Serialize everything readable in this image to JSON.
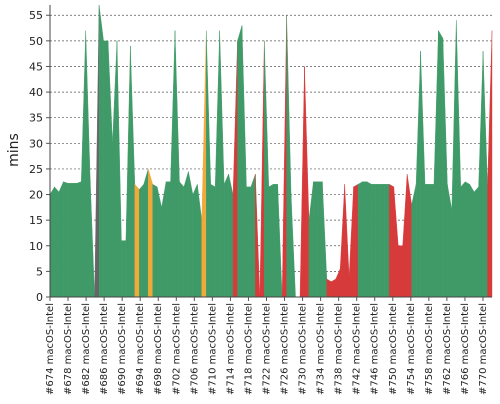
{
  "chart_data": {
    "type": "area",
    "ylabel": "mins",
    "ylim": [
      0,
      57
    ],
    "yticks": [
      0,
      5,
      10,
      15,
      20,
      25,
      30,
      35,
      40,
      45,
      50,
      55
    ],
    "grid": true,
    "x_labels": [
      "#674 macOS-Intel",
      "#678 macOS-Intel",
      "#682 macOS-Intel",
      "#686 macOS-Intel",
      "#690 macOS-Intel",
      "#694 macOS-Intel",
      "#698 macOS-Intel",
      "#702 macOS-Intel",
      "#706 macOS-Intel",
      "#710 macOS-Intel",
      "#714 macOS-Intel",
      "#718 macOS-Intel",
      "#722 macOS-Intel",
      "#726 macOS-Intel",
      "#730 macOS-Intel",
      "#734 macOS-Intel",
      "#738 macOS-Intel",
      "#742 macOS-Intel",
      "#746 macOS-Intel",
      "#750 macOS-Intel",
      "#754 macOS-Intel",
      "#758 macOS-Intel",
      "#762 macOS-Intel",
      "#766 macOS-Intel",
      "#770 macOS-Intel"
    ],
    "x_start": 674,
    "x_end": 772,
    "series_colors": {
      "success": "#3f9a68",
      "failure": "#d63a3a",
      "unstable": "#f1a93a",
      "aborted": "#666666"
    },
    "values": [
      20,
      21.5,
      20.5,
      22.5,
      22.2,
      22.2,
      22.2,
      22.5,
      52,
      23,
      0,
      57,
      50,
      50,
      30,
      50,
      11,
      11,
      49,
      22,
      21,
      22,
      25,
      22,
      21.5,
      17.5,
      22.5,
      22.5,
      52,
      22.5,
      21.5,
      24.5,
      20,
      22,
      15,
      52,
      22,
      21.5,
      52,
      22,
      24,
      20,
      50,
      53,
      21.5,
      21.5,
      24,
      0,
      50,
      21.5,
      22,
      22,
      0,
      55,
      20,
      0,
      0,
      45,
      15,
      22.5,
      22.5,
      22.5,
      3.5,
      3,
      3.5,
      5.5,
      22,
      4,
      21.5,
      22,
      22.5,
      22.5,
      22,
      22,
      22,
      22,
      22,
      21.5,
      10,
      10,
      24,
      18,
      22,
      48,
      22,
      22,
      22,
      52,
      50.5,
      22,
      17,
      54,
      21.5,
      22.5,
      22,
      20.5,
      21.5,
      48,
      21.5,
      52
    ],
    "status": [
      "success",
      "success",
      "success",
      "success",
      "success",
      "success",
      "success",
      "success",
      "success",
      "success",
      "aborted",
      "success",
      "success",
      "success",
      "success",
      "success",
      "success",
      "success",
      "success",
      "unstable",
      "success",
      "success",
      "unstable",
      "success",
      "success",
      "success",
      "success",
      "success",
      "success",
      "success",
      "success",
      "success",
      "success",
      "success",
      "unstable",
      "success",
      "success",
      "success",
      "success",
      "success",
      "success",
      "failure",
      "success",
      "success",
      "success",
      "success",
      "failure",
      "failure",
      "success",
      "success",
      "success",
      "success",
      "failure",
      "success",
      "success",
      "failure",
      "failure",
      "failure",
      "success",
      "success",
      "success",
      "success",
      "failure",
      "failure",
      "failure",
      "failure",
      "failure",
      "failure",
      "failure",
      "success",
      "success",
      "success",
      "success",
      "success",
      "success",
      "success",
      "failure",
      "failure",
      "failure",
      "failure",
      "failure",
      "success",
      "success",
      "success",
      "success",
      "success",
      "success",
      "success",
      "success",
      "success",
      "success",
      "success",
      "success",
      "success",
      "success",
      "success",
      "success",
      "success",
      "failure",
      "success"
    ]
  }
}
